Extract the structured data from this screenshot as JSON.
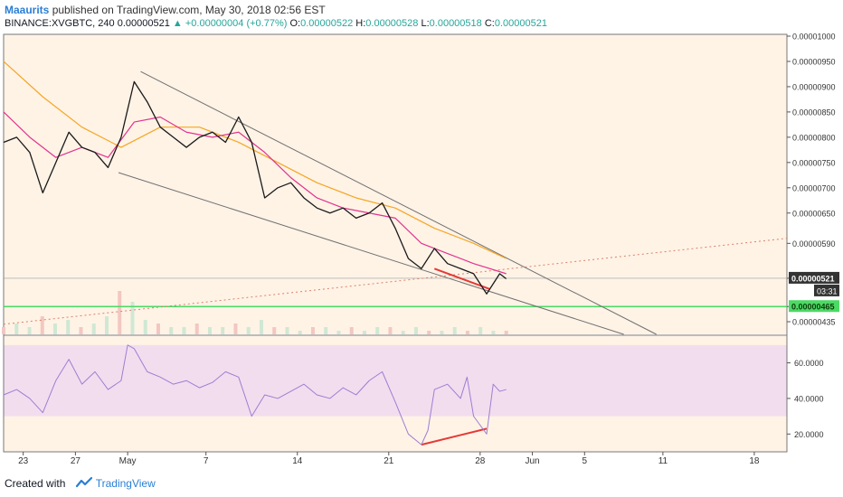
{
  "header": {
    "author": "Maaurits",
    "published_text": "published on TradingView.com, May 30, 2018 02:56 EST",
    "symbol": "BINANCE:XVGBTC, 240",
    "last": "0.00000521",
    "change": "+0.00000004 (+0.77%)",
    "o_label": "O:",
    "o": "0.00000522",
    "h_label": "H:",
    "h": "0.00000528",
    "l_label": "L:",
    "l": "0.00000518",
    "c_label": "C:",
    "c": "0.00000521"
  },
  "footer": {
    "created_with": "Created with",
    "brand": "TradingView"
  },
  "colors": {
    "plot_bg": "#fff3e6",
    "rsi_band": "#f2ddef",
    "ema_fast": "#e0348f",
    "ema_slow": "#f5a623",
    "rsi_line": "#9c7fd1",
    "divergence": "#e53935",
    "support": "#4cd964",
    "trendline": "#707070",
    "volume_up": "#cfe8d4",
    "volume_down": "#f3c7c1"
  },
  "chart_data": {
    "type": "line",
    "title": "BINANCE:XVGBTC, 240",
    "price_axis": {
      "ylim": [
        4.1e-06,
        1e-05
      ],
      "ticks": [
        "0.00001000",
        "0.00000950",
        "0.00000900",
        "0.00000850",
        "0.00000800",
        "0.00000750",
        "0.00000700",
        "0.00000650",
        "0.00000590",
        "0.00000521",
        "0.00000465",
        "0.00000435"
      ],
      "last_price_label": "0.00000521",
      "countdown_label": "03:31",
      "support_label": "0.00000465"
    },
    "rsi_axis": {
      "ylim": [
        10,
        75
      ],
      "ticks": [
        "60.0000",
        "40.0000",
        "20.0000"
      ],
      "band": [
        30,
        70
      ]
    },
    "x_axis": {
      "xlim": [
        0,
        60
      ],
      "labels": [
        "23",
        "27",
        "May",
        "7",
        "14",
        "21",
        "28",
        "Jun",
        "5",
        "11",
        "18"
      ],
      "label_x": [
        1.5,
        5.5,
        9.5,
        15.5,
        22.5,
        29.5,
        36.5,
        40.5,
        44.5,
        50.5,
        57.5
      ]
    },
    "support_level": 4.65e-06,
    "close_series": {
      "x": [
        0,
        1,
        2,
        3,
        4,
        5,
        6,
        7,
        8,
        9,
        10,
        11,
        12,
        13,
        14,
        15,
        16,
        17,
        18,
        19,
        20,
        21,
        22,
        23,
        24,
        25,
        26,
        27,
        28,
        29,
        30,
        31,
        32,
        33,
        34,
        35,
        36,
        37,
        38,
        38.5
      ],
      "values": [
        7.9e-06,
        8e-06,
        7.7e-06,
        6.9e-06,
        7.5e-06,
        8.1e-06,
        7.8e-06,
        7.7e-06,
        7.4e-06,
        8e-06,
        9.1e-06,
        8.7e-06,
        8.2e-06,
        8e-06,
        7.8e-06,
        8e-06,
        8.1e-06,
        7.9e-06,
        8.4e-06,
        7.9e-06,
        6.8e-06,
        7e-06,
        7.1e-06,
        6.8e-06,
        6.6e-06,
        6.5e-06,
        6.6e-06,
        6.4e-06,
        6.5e-06,
        6.7e-06,
        6.2e-06,
        5.6e-06,
        5.4e-06,
        5.8e-06,
        5.5e-06,
        5.4e-06,
        5.3e-06,
        4.9e-06,
        5.3e-06,
        5.2e-06
      ]
    },
    "ema_fast_series": {
      "x": [
        0,
        2,
        4,
        6,
        8,
        10,
        12,
        14,
        16,
        18,
        20,
        22,
        24,
        26,
        28,
        30,
        32,
        34,
        36,
        38.5
      ],
      "values": [
        8.5e-06,
        8e-06,
        7.6e-06,
        7.8e-06,
        7.6e-06,
        8.3e-06,
        8.4e-06,
        8.1e-06,
        8e-06,
        8.1e-06,
        7.7e-06,
        7.2e-06,
        6.8e-06,
        6.6e-06,
        6.5e-06,
        6.4e-06,
        5.9e-06,
        5.7e-06,
        5.5e-06,
        5.3e-06
      ]
    },
    "ema_slow_series": {
      "x": [
        0,
        3,
        6,
        9,
        12,
        15,
        18,
        21,
        24,
        27,
        30,
        33,
        36,
        38.5
      ],
      "values": [
        9.5e-06,
        8.8e-06,
        8.2e-06,
        7.8e-06,
        8.2e-06,
        8.2e-06,
        7.9e-06,
        7.5e-06,
        7.1e-06,
        6.8e-06,
        6.6e-06,
        6.2e-06,
        5.9e-06,
        5.6e-06
      ]
    },
    "volume_values": [
      2,
      3,
      2,
      5,
      3,
      4,
      2,
      3,
      5,
      12,
      9,
      4,
      3,
      2,
      2,
      3,
      2,
      2,
      3,
      2,
      4,
      2,
      2,
      1,
      2,
      2,
      1,
      2,
      1,
      2,
      2,
      1,
      2,
      1,
      1,
      2,
      1,
      2,
      1,
      1
    ],
    "rsi_series": {
      "x": [
        0,
        1,
        2,
        3,
        4,
        5,
        6,
        7,
        8,
        9,
        9.5,
        10,
        11,
        12,
        13,
        14,
        15,
        16,
        17,
        18,
        19,
        20,
        21,
        22,
        23,
        24,
        25,
        26,
        27,
        28,
        29,
        30,
        31,
        32,
        32.5,
        33,
        34,
        35,
        35.5,
        36,
        37,
        37.5,
        38,
        38.5
      ],
      "values": [
        42,
        45,
        40,
        32,
        50,
        62,
        48,
        55,
        45,
        50,
        70,
        68,
        55,
        52,
        48,
        50,
        46,
        49,
        55,
        52,
        30,
        42,
        40,
        44,
        48,
        42,
        40,
        46,
        42,
        50,
        55,
        38,
        20,
        14,
        22,
        45,
        48,
        40,
        52,
        30,
        20,
        48,
        44,
        45
      ]
    },
    "trendlines": [
      {
        "name": "upper",
        "x": [
          10.5,
          50
        ],
        "y": [
          9.3e-06,
          4.1e-06
        ]
      },
      {
        "name": "lower",
        "x": [
          8.8,
          47.5
        ],
        "y": [
          7.3e-06,
          4.1e-06
        ]
      },
      {
        "name": "dotted",
        "x": [
          0,
          60
        ],
        "y": [
          4.3e-06,
          6e-06
        ]
      },
      {
        "name": "divergence-price",
        "x": [
          33,
          37.2
        ],
        "y": [
          5.4e-06,
          5e-06
        ]
      },
      {
        "name": "divergence-rsi",
        "x": [
          32,
          37
        ],
        "y": [
          14,
          23
        ]
      }
    ]
  }
}
